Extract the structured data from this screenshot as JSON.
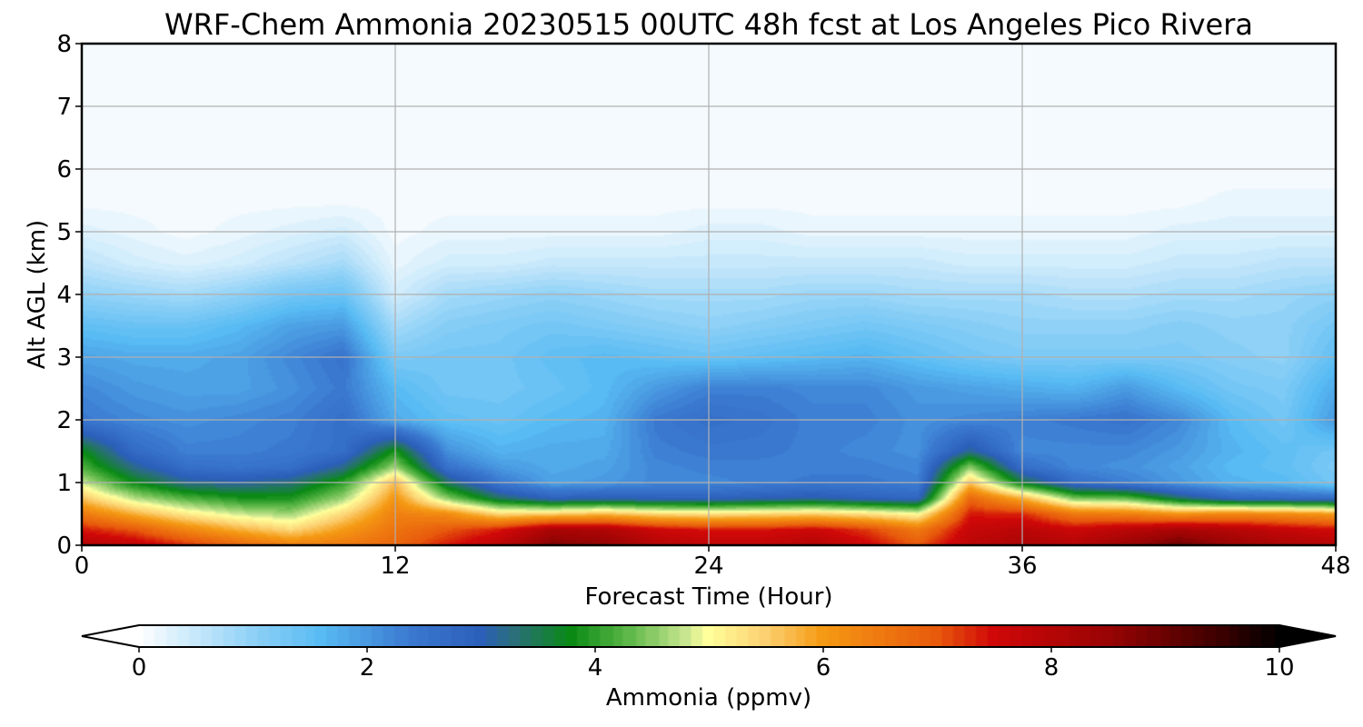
{
  "chart_data": {
    "type": "heatmap",
    "title": "WRF-Chem Ammonia  20230515 00UTC 48h fcst at Los Angeles Pico Rivera",
    "xlabel": "Forecast Time (Hour)",
    "ylabel": "Alt AGL (km)",
    "xlim": [
      0,
      48
    ],
    "ylim": [
      0,
      8
    ],
    "x_ticks": [
      0,
      12,
      24,
      36,
      48
    ],
    "y_ticks": [
      0,
      1,
      2,
      3,
      4,
      5,
      6,
      7,
      8
    ],
    "grid": true,
    "x": [
      0,
      2,
      4,
      6,
      8,
      10,
      12,
      14,
      16,
      18,
      20,
      22,
      24,
      26,
      28,
      30,
      32,
      34,
      36,
      38,
      40,
      42,
      44,
      46,
      48
    ],
    "y": [
      0,
      0.25,
      0.5,
      0.75,
      1,
      1.25,
      1.5,
      2,
      2.5,
      3,
      3.5,
      4,
      4.5,
      5,
      5.5,
      6,
      7,
      8
    ],
    "z_rows_by_altitude": [
      [
        8.0,
        7.8,
        7.3,
        6.8,
        6.4,
        6.5,
        6.8,
        7.4,
        7.9,
        8.8,
        8.6,
        8.0,
        7.8,
        7.8,
        8.0,
        7.6,
        7.0,
        7.9,
        8.2,
        8.0,
        8.5,
        9.0,
        8.5,
        8.2,
        8.0
      ],
      [
        7.4,
        7.0,
        6.3,
        5.8,
        5.4,
        6.0,
        6.6,
        7.0,
        7.4,
        8.2,
        8.1,
        7.6,
        7.4,
        7.4,
        7.6,
        7.2,
        6.5,
        7.7,
        7.9,
        7.6,
        7.9,
        8.2,
        8.0,
        7.7,
        7.5
      ],
      [
        6.5,
        5.8,
        5.2,
        4.8,
        4.6,
        5.4,
        6.4,
        6.2,
        5.4,
        5.5,
        5.7,
        5.4,
        5.3,
        5.4,
        5.5,
        5.3,
        5.0,
        7.4,
        7.3,
        6.5,
        6.4,
        6.1,
        6.3,
        6.2,
        6.0
      ],
      [
        5.6,
        4.7,
        4.2,
        3.9,
        3.9,
        4.6,
        6.1,
        4.5,
        3.4,
        2.9,
        3.0,
        2.9,
        2.9,
        3.0,
        3.1,
        2.9,
        2.8,
        6.8,
        5.8,
        4.4,
        4.3,
        3.4,
        2.8,
        2.7,
        2.6
      ],
      [
        4.8,
        3.8,
        3.2,
        3.1,
        3.3,
        4.0,
        5.7,
        3.4,
        2.4,
        1.9,
        2.0,
        2.2,
        2.2,
        2.3,
        2.4,
        2.4,
        2.3,
        5.6,
        3.6,
        2.6,
        2.3,
        2.0,
        1.7,
        1.6,
        1.3
      ],
      [
        4.2,
        3.2,
        2.6,
        2.5,
        2.6,
        3.2,
        4.6,
        2.5,
        2.0,
        1.8,
        1.9,
        2.2,
        2.3,
        2.3,
        2.3,
        2.3,
        2.2,
        4.5,
        2.6,
        2.2,
        2.1,
        1.9,
        1.6,
        1.5,
        1.2
      ],
      [
        3.8,
        2.7,
        2.3,
        2.3,
        2.4,
        2.6,
        3.9,
        2.1,
        1.7,
        1.8,
        1.8,
        2.3,
        2.4,
        2.4,
        2.3,
        2.2,
        2.1,
        3.2,
        2.2,
        2.2,
        2.2,
        2.0,
        1.7,
        1.5,
        1.3
      ],
      [
        2.4,
        2.2,
        2.1,
        2.2,
        2.3,
        2.6,
        1.8,
        1.5,
        1.4,
        1.6,
        1.7,
        2.4,
        2.6,
        2.5,
        2.3,
        2.3,
        2.1,
        2.2,
        2.3,
        2.4,
        2.5,
        2.2,
        1.6,
        1.3,
        2.0
      ],
      [
        2.2,
        2.0,
        1.9,
        1.9,
        2.1,
        2.4,
        1.6,
        1.3,
        1.3,
        1.4,
        1.6,
        2.0,
        2.3,
        2.3,
        2.2,
        2.2,
        2.0,
        1.9,
        1.8,
        1.7,
        2.0,
        1.6,
        1.3,
        1.2,
        1.8
      ],
      [
        1.9,
        1.8,
        1.8,
        1.9,
        2.2,
        2.5,
        1.2,
        1.3,
        1.3,
        1.5,
        1.6,
        1.5,
        1.4,
        1.5,
        1.6,
        1.7,
        1.5,
        1.3,
        1.2,
        1.2,
        1.2,
        1.2,
        1.1,
        1.0,
        1.5
      ],
      [
        1.5,
        1.4,
        1.4,
        1.6,
        1.9,
        2.0,
        0.8,
        1.1,
        1.2,
        1.3,
        1.2,
        1.1,
        1.0,
        1.1,
        1.2,
        1.3,
        1.2,
        1.1,
        1.0,
        1.0,
        1.0,
        1.1,
        1.0,
        1.0,
        1.3
      ],
      [
        1.0,
        0.9,
        0.8,
        1.0,
        1.3,
        1.4,
        0.4,
        0.8,
        0.9,
        1.0,
        0.9,
        0.8,
        0.8,
        0.8,
        0.9,
        0.9,
        0.8,
        0.8,
        0.8,
        0.7,
        0.7,
        0.8,
        0.8,
        0.9,
        1.0
      ],
      [
        0.6,
        0.4,
        0.3,
        0.4,
        0.6,
        0.8,
        0.2,
        0.4,
        0.4,
        0.5,
        0.5,
        0.5,
        0.5,
        0.5,
        0.5,
        0.5,
        0.5,
        0.4,
        0.4,
        0.4,
        0.4,
        0.5,
        0.5,
        0.6,
        0.6
      ],
      [
        0.3,
        0.2,
        0.1,
        0.2,
        0.3,
        0.4,
        0.1,
        0.2,
        0.2,
        0.2,
        0.2,
        0.2,
        0.3,
        0.3,
        0.2,
        0.2,
        0.2,
        0.2,
        0.2,
        0.2,
        0.2,
        0.3,
        0.3,
        0.3,
        0.3
      ],
      [
        0.1,
        0.1,
        0.1,
        0.1,
        0.1,
        0.1,
        0.1,
        0.1,
        0.1,
        0.1,
        0.1,
        0.1,
        0.1,
        0.1,
        0.1,
        0.1,
        0.1,
        0.1,
        0.1,
        0.1,
        0.1,
        0.1,
        0.2,
        0.2,
        0.2
      ],
      [
        0.05,
        0.05,
        0.05,
        0.05,
        0.05,
        0.05,
        0.05,
        0.05,
        0.05,
        0.05,
        0.05,
        0.05,
        0.05,
        0.05,
        0.05,
        0.05,
        0.05,
        0.05,
        0.05,
        0.05,
        0.05,
        0.05,
        0.05,
        0.05,
        0.05
      ],
      [
        0.05,
        0.05,
        0.05,
        0.05,
        0.05,
        0.05,
        0.05,
        0.05,
        0.05,
        0.05,
        0.05,
        0.05,
        0.05,
        0.05,
        0.05,
        0.05,
        0.05,
        0.05,
        0.05,
        0.05,
        0.05,
        0.05,
        0.05,
        0.05,
        0.05
      ],
      [
        0.05,
        0.05,
        0.05,
        0.05,
        0.05,
        0.05,
        0.05,
        0.05,
        0.05,
        0.05,
        0.05,
        0.05,
        0.05,
        0.05,
        0.05,
        0.05,
        0.05,
        0.05,
        0.05,
        0.05,
        0.05,
        0.05,
        0.05,
        0.05,
        0.05
      ]
    ],
    "colorbar": {
      "label": "Ammonia  (ppmv)",
      "ticks": [
        0,
        2,
        4,
        6,
        8,
        10
      ],
      "range": [
        0,
        10
      ],
      "extend": "both",
      "orientation": "horizontal",
      "placement": "bottom",
      "under_color": "#ffffff",
      "over_color": "#000000",
      "stops": [
        {
          "v": 0.0,
          "c": "#ffffff"
        },
        {
          "v": 1.0,
          "c": "#8fd1f7"
        },
        {
          "v": 1.6,
          "c": "#58bbf3"
        },
        {
          "v": 2.4,
          "c": "#3a78cf"
        },
        {
          "v": 3.0,
          "c": "#2c5fba"
        },
        {
          "v": 3.3,
          "c": "#2a6f7a"
        },
        {
          "v": 3.8,
          "c": "#0a8a14"
        },
        {
          "v": 4.3,
          "c": "#5fb84a"
        },
        {
          "v": 4.8,
          "c": "#c8e68f"
        },
        {
          "v": 5.0,
          "c": "#ffff9c"
        },
        {
          "v": 5.5,
          "c": "#fcd070"
        },
        {
          "v": 6.0,
          "c": "#f59a14"
        },
        {
          "v": 7.0,
          "c": "#e85a0c"
        },
        {
          "v": 7.5,
          "c": "#d00808"
        },
        {
          "v": 8.5,
          "c": "#9a0404"
        },
        {
          "v": 9.5,
          "c": "#3a0000"
        },
        {
          "v": 10.0,
          "c": "#000000"
        }
      ]
    }
  }
}
